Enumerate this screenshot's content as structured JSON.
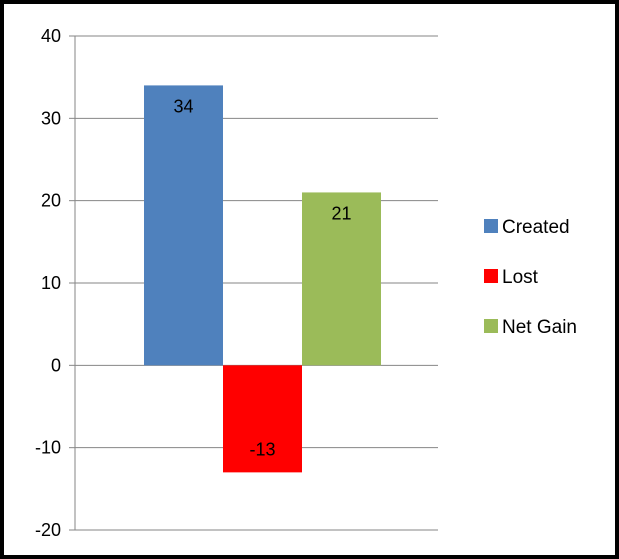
{
  "chart_data": {
    "type": "bar",
    "categories": [
      "Created",
      "Lost",
      "Net Gain"
    ],
    "values": [
      34,
      -13,
      21
    ],
    "data_labels": [
      "34",
      "-13",
      "21"
    ],
    "series": [
      {
        "name": "Created",
        "value": 34,
        "color": "#4F81BD"
      },
      {
        "name": "Lost",
        "value": -13,
        "color": "#FF0000"
      },
      {
        "name": "Net Gain",
        "value": 21,
        "color": "#9BBB59"
      }
    ],
    "title": "",
    "xlabel": "",
    "ylabel": "",
    "ylim": [
      -20,
      40
    ],
    "yticks": [
      40,
      30,
      20,
      10,
      0,
      -10,
      -20
    ],
    "ytick_labels": [
      "40",
      "30",
      "20",
      "10",
      "0",
      "-10",
      "-20"
    ],
    "grid": true,
    "legend_position": "right"
  }
}
